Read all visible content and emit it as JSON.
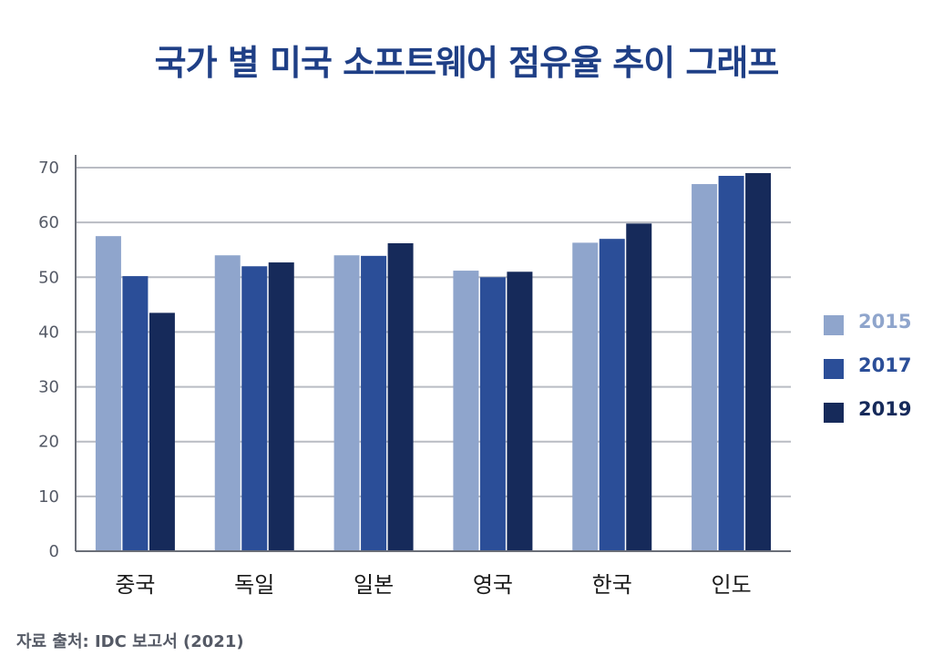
{
  "title": "국가 별 미국 소프트웨어 점유율 추이 그래프",
  "source": "자료 출처: IDC 보고서 (2021)",
  "chart_data": {
    "type": "bar",
    "title": "국가 별 미국 소프트웨어 점유율 추이 그래프",
    "xlabel": "",
    "ylabel": "",
    "categories": [
      "중국",
      "독일",
      "일본",
      "영국",
      "한국",
      "인도"
    ],
    "ylim": [
      0,
      70
    ],
    "yticks": [
      0,
      10,
      20,
      30,
      40,
      50,
      60,
      70
    ],
    "grid": true,
    "legend_position": "right",
    "series": [
      {
        "name": "2015",
        "color": "#8fa5cc",
        "values": [
          57.5,
          54,
          54,
          51.2,
          56.3,
          67
        ]
      },
      {
        "name": "2017",
        "color": "#2b4e98",
        "values": [
          50.2,
          52,
          53.9,
          50,
          57,
          68.5
        ]
      },
      {
        "name": "2019",
        "color": "#162a5a",
        "values": [
          43.5,
          52.7,
          56.2,
          51,
          59.8,
          69
        ]
      }
    ]
  }
}
